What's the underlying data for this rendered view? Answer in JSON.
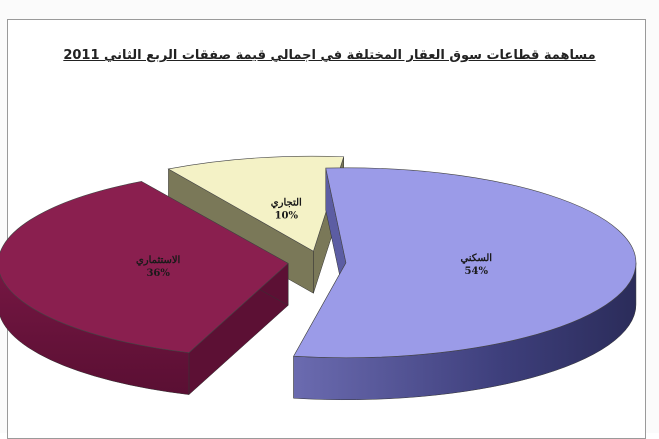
{
  "chart_data": {
    "type": "pie",
    "style": "3d-exploded",
    "title": "مساهمة قطاعات سوق العقار المختلفة في اجمالي قيمة صفقات الربع الثاني 2011",
    "slices": [
      {
        "label": "السكني",
        "value": 54,
        "value_label": "54%",
        "color": "#9b9be8"
      },
      {
        "label": "الاستثماري",
        "value": 36,
        "value_label": "36%",
        "color": "#8a1f4f"
      },
      {
        "label": "التجاري",
        "value": 10,
        "value_label": "10%",
        "color": "#f4f2c6"
      }
    ],
    "legend": "none"
  }
}
